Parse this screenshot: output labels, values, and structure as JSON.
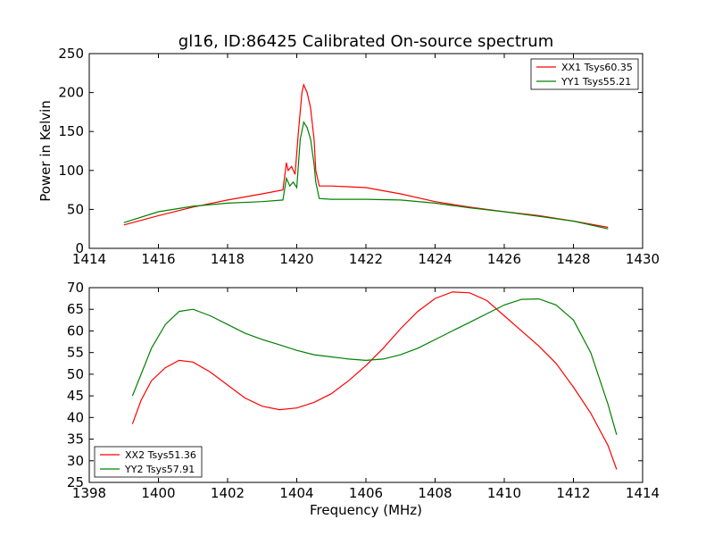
{
  "chart_data": [
    {
      "type": "line",
      "title": "gl16, ID:86425 Calibrated On-source spectrum",
      "xlabel": "",
      "ylabel": "Power in Kelvin",
      "xlim": [
        1414,
        1430
      ],
      "ylim": [
        0,
        250
      ],
      "xticks": [
        "1414",
        "1416",
        "1418",
        "1420",
        "1422",
        "1424",
        "1426",
        "1428",
        "1430"
      ],
      "yticks": [
        "0",
        "50",
        "100",
        "150",
        "200",
        "250"
      ],
      "legend_position": "top-right",
      "series": [
        {
          "name": "XX1 Tsys60.35",
          "color": "#ff0000",
          "x": [
            1415.0,
            1416.0,
            1417.0,
            1418.0,
            1419.0,
            1419.6,
            1419.7,
            1419.75,
            1419.85,
            1419.95,
            1420.05,
            1420.15,
            1420.2,
            1420.3,
            1420.4,
            1420.5,
            1420.55,
            1420.65,
            1421.0,
            1422.0,
            1423.0,
            1424.0,
            1425.0,
            1426.0,
            1427.0,
            1428.0,
            1429.0
          ],
          "y": [
            30,
            42,
            53,
            62,
            70,
            75,
            110,
            100,
            105,
            95,
            150,
            200,
            210,
            200,
            180,
            140,
            100,
            80,
            80,
            78,
            70,
            60,
            53,
            47,
            42,
            35,
            27
          ]
        },
        {
          "name": "YY1 Tsys55.21",
          "color": "#008000",
          "x": [
            1415.0,
            1416.0,
            1417.0,
            1418.0,
            1419.0,
            1419.6,
            1419.7,
            1419.8,
            1419.9,
            1420.0,
            1420.1,
            1420.2,
            1420.3,
            1420.4,
            1420.5,
            1420.55,
            1420.65,
            1421.0,
            1422.0,
            1423.0,
            1424.0,
            1425.0,
            1426.0,
            1427.0,
            1428.0,
            1429.0
          ],
          "y": [
            33,
            47,
            54,
            58,
            60,
            62,
            90,
            80,
            85,
            78,
            140,
            162,
            155,
            140,
            108,
            85,
            64,
            63,
            63,
            62,
            58,
            52,
            47,
            41,
            35,
            25
          ]
        }
      ]
    },
    {
      "type": "line",
      "title": "",
      "xlabel": "Frequency (MHz)",
      "ylabel": "",
      "xlim": [
        1398,
        1414
      ],
      "ylim": [
        25,
        70
      ],
      "xticks": [
        "1398",
        "1400",
        "1402",
        "1404",
        "1406",
        "1408",
        "1410",
        "1412",
        "1414"
      ],
      "yticks": [
        "25",
        "30",
        "35",
        "40",
        "45",
        "50",
        "55",
        "60",
        "65",
        "70"
      ],
      "legend_position": "bottom-left",
      "series": [
        {
          "name": "XX2 Tsys51.36",
          "color": "#ff0000",
          "x": [
            1399.25,
            1399.5,
            1399.8,
            1400.2,
            1400.6,
            1401.0,
            1401.5,
            1402.0,
            1402.5,
            1403.0,
            1403.5,
            1404.0,
            1404.5,
            1405.0,
            1405.5,
            1406.0,
            1406.5,
            1407.0,
            1407.5,
            1408.0,
            1408.5,
            1409.0,
            1409.5,
            1410.0,
            1410.5,
            1411.0,
            1411.5,
            1412.0,
            1412.5,
            1413.0,
            1413.25
          ],
          "y": [
            38.5,
            44,
            48.5,
            51.5,
            53.2,
            52.8,
            50.5,
            47.5,
            44.5,
            42.6,
            41.8,
            42.2,
            43.5,
            45.5,
            48.5,
            52,
            56,
            60.5,
            64.5,
            67.5,
            69,
            68.8,
            67,
            63.5,
            60,
            56.5,
            52.5,
            47,
            41,
            33.5,
            28
          ]
        },
        {
          "name": "YY2 Tsys57.91",
          "color": "#008000",
          "x": [
            1399.25,
            1399.5,
            1399.8,
            1400.2,
            1400.6,
            1401.0,
            1401.5,
            1402.0,
            1402.5,
            1403.0,
            1403.5,
            1404.0,
            1404.5,
            1405.0,
            1405.5,
            1406.0,
            1406.5,
            1407.0,
            1407.5,
            1408.0,
            1408.5,
            1409.0,
            1409.5,
            1410.0,
            1410.5,
            1411.0,
            1411.5,
            1412.0,
            1412.5,
            1413.0,
            1413.25
          ],
          "y": [
            45,
            50,
            56,
            61.5,
            64.5,
            65,
            63.5,
            61.5,
            59.5,
            58,
            56.8,
            55.5,
            54.5,
            54,
            53.5,
            53.2,
            53.5,
            54.5,
            56,
            58,
            60,
            62,
            64,
            66,
            67.3,
            67.4,
            66,
            62.5,
            55,
            43,
            36
          ]
        }
      ]
    }
  ]
}
